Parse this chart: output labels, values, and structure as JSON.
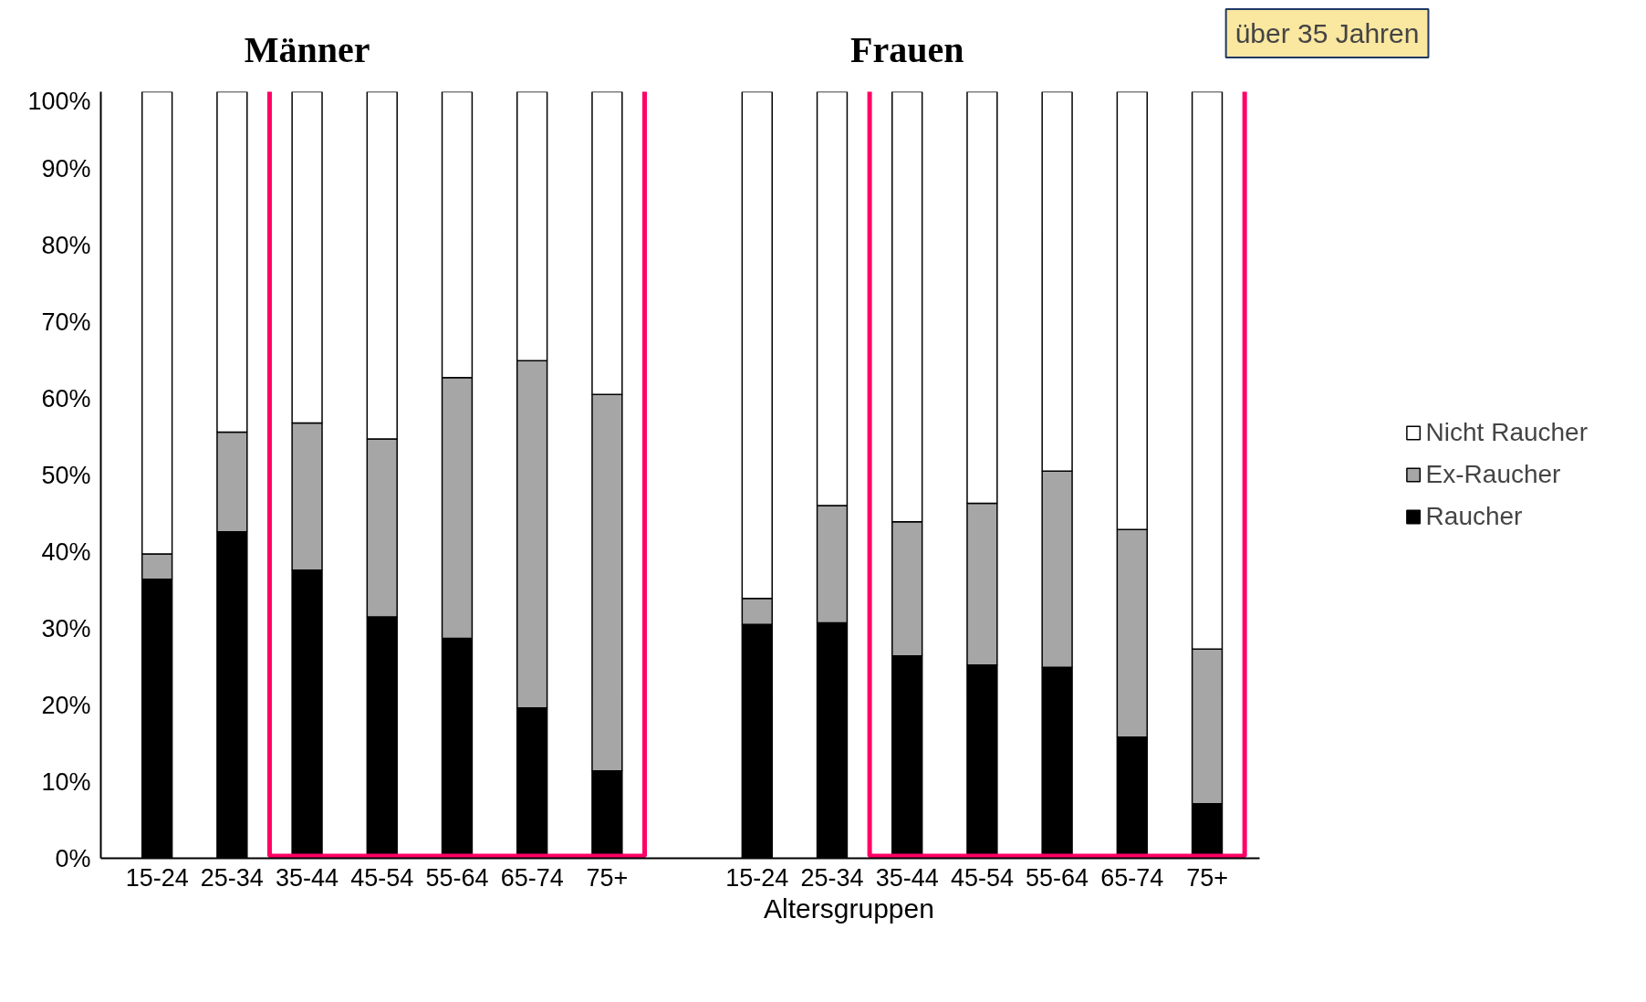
{
  "chart_data": {
    "type": "bar",
    "stacked": true,
    "xlabel": "Altersgruppen",
    "categories": [
      "15-24",
      "25-34",
      "35-44",
      "45-54",
      "55-64",
      "65-74",
      "75+",
      null,
      "15-24",
      "25-34",
      "35-44",
      "45-54",
      "55-64",
      "65-74",
      "75+"
    ],
    "series": [
      {
        "name": "Raucher",
        "color": "#000000",
        "values": [
          36.4,
          42.6,
          37.6,
          31.5,
          28.7,
          19.6,
          11.4,
          null,
          30.5,
          30.7,
          26.4,
          25.2,
          24.9,
          15.8,
          7.1
        ]
      },
      {
        "name": "Ex-Raucher",
        "color": "#a6a6a6",
        "values": [
          3.3,
          13.0,
          19.2,
          23.2,
          34.0,
          45.3,
          49.1,
          null,
          3.4,
          15.3,
          17.5,
          21.1,
          25.6,
          27.1,
          20.2
        ]
      },
      {
        "name": "Nicht Raucher",
        "color": "#ffffff",
        "values": [
          60.3,
          44.4,
          43.2,
          45.3,
          37.3,
          35.1,
          39.5,
          null,
          66.1,
          54.0,
          56.1,
          53.7,
          49.5,
          57.1,
          72.7
        ]
      }
    ],
    "ylim": [
      0,
      100
    ],
    "yticks": [
      {
        "value": 0,
        "label": "0%"
      },
      {
        "value": 10,
        "label": "10%"
      },
      {
        "value": 20,
        "label": "20%"
      },
      {
        "value": 30,
        "label": "30%"
      },
      {
        "value": 40,
        "label": "40%"
      },
      {
        "value": 50,
        "label": "50%"
      },
      {
        "value": 60,
        "label": "60%"
      },
      {
        "value": 70,
        "label": "70%"
      },
      {
        "value": 80,
        "label": "80%"
      },
      {
        "value": 90,
        "label": "90%"
      },
      {
        "value": 100,
        "label": "100%"
      }
    ],
    "grid": false,
    "legend": "right",
    "annotations": [
      "Männer",
      "Frauen",
      "über 35 Jahren"
    ]
  }
}
